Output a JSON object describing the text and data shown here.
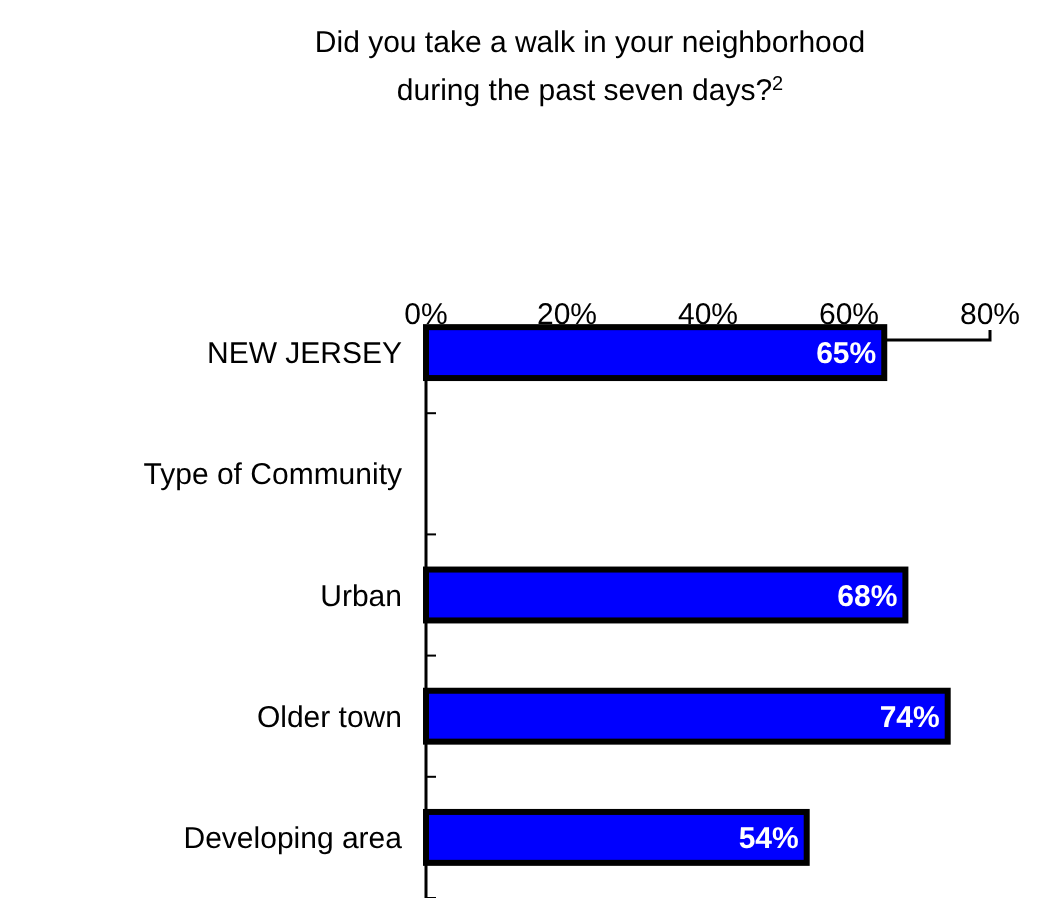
{
  "chart_data": {
    "type": "bar",
    "orientation": "horizontal",
    "title": "Did you take a walk in your neighborhood during the past seven days?$^{2}$",
    "categories": [
      "NEW JERSEY",
      "Type of Community",
      "Urban",
      "Older town",
      "Developing area"
    ],
    "values": [
      65,
      null,
      68,
      74,
      54
    ],
    "value_labels": [
      "65%",
      null,
      "68%",
      "74%",
      "54%"
    ],
    "color": "#0000ff",
    "xlim": [
      0,
      80
    ],
    "xticks": [
      {
        "value": 0,
        "label": "0%"
      },
      {
        "value": 20,
        "label": "20%"
      },
      {
        "value": 40,
        "label": "40%"
      },
      {
        "value": 60,
        "label": "60%"
      },
      {
        "value": 80,
        "label": "80%"
      }
    ],
    "grid": false
  }
}
